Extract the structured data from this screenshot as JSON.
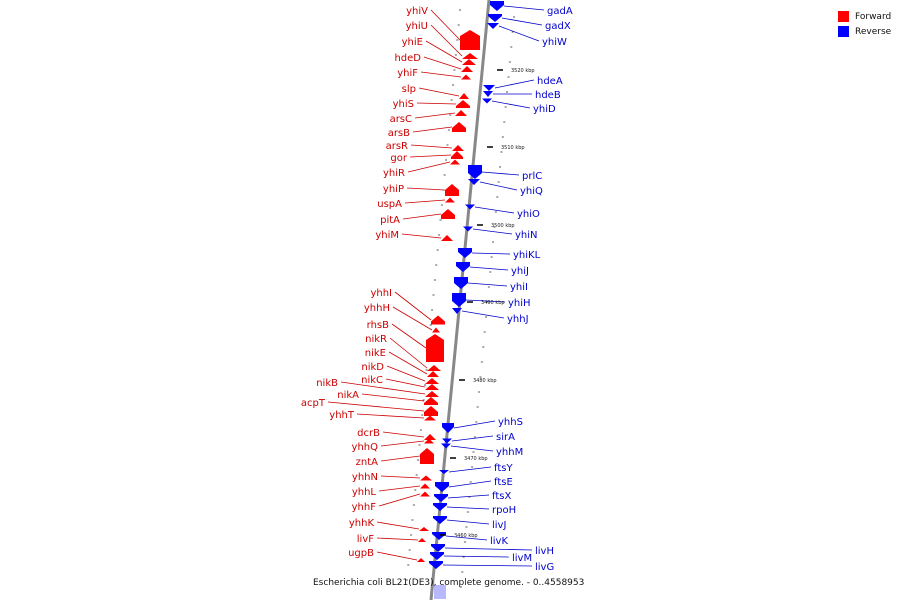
{
  "legend": {
    "items": [
      {
        "label": "Forward",
        "color": "#ff0000"
      },
      {
        "label": "Reverse",
        "color": "#0000ff"
      }
    ]
  },
  "caption": "Escherichia coli BL21(DE3), complete genome. - 0..4558953",
  "colors": {
    "forward": "#ff0000",
    "reverse": "#0000ff",
    "axis": "#888888",
    "line_red": "#cc0000",
    "line_blue": "#0000cc"
  },
  "ticks": [
    "3520 kbp",
    "3510 kbp",
    "3500 kbp",
    "3490 kbp",
    "3480 kbp",
    "3470 kbp",
    "3460 kbp"
  ],
  "forward_genes": [
    "yhiV",
    "yhiU",
    "yhiE",
    "hdeD",
    "yhiF",
    "slp",
    "yhiS",
    "arsC",
    "arsB",
    "arsR",
    "gor",
    "yhiR",
    "yhiP",
    "uspA",
    "pitA",
    "yhiM",
    "yhhI",
    "yhhH",
    "rhsB",
    "nikR",
    "nikE",
    "nikD",
    "nikC",
    "nikB",
    "nikA",
    "acpT",
    "yhhT",
    "dcrB",
    "yhhQ",
    "zntA",
    "yhhN",
    "yhhL",
    "yhhF",
    "yhhK",
    "livF",
    "ugpB"
  ],
  "reverse_genes": [
    "gadA",
    "gadX",
    "yhiW",
    "hdeA",
    "hdeB",
    "yhiD",
    "prlC",
    "yhiQ",
    "yhiO",
    "yhiN",
    "yhiKL",
    "yhiJ",
    "yhiI",
    "yhiH",
    "yhhJ",
    "yhhS",
    "sirA",
    "yhhM",
    "ftsY",
    "ftsE",
    "ftsX",
    "rpoH",
    "livJ",
    "livK",
    "livH",
    "livM",
    "livG"
  ]
}
